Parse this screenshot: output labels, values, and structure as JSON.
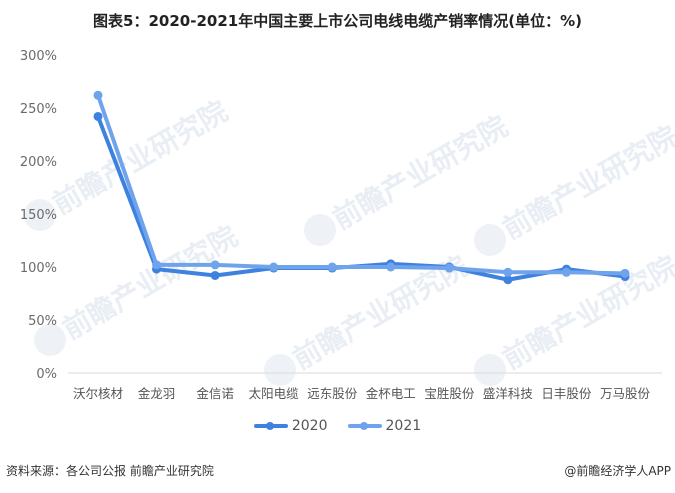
{
  "title": "图表5：2020-2021年中国主要上市公司电线电缆产销率情况(单位：%)",
  "footer": {
    "source": "资料来源：各公司公报 前瞻产业研究院",
    "credit": "@前瞻经济学人APP"
  },
  "watermark": "前瞻产业研究院",
  "colors": {
    "series_2020": "#3e82e0",
    "series_2021": "#6fa3ec",
    "axis": "#d9d9d9"
  },
  "legend": [
    {
      "label": "2020"
    },
    {
      "label": "2021"
    }
  ],
  "y_ticks": [
    "300%",
    "250%",
    "200%",
    "150%",
    "100%",
    "50%",
    "0%"
  ],
  "chart_data": {
    "type": "line",
    "title": "图表5：2020-2021年中国主要上市公司电线电缆产销率情况(单位：%)",
    "xlabel": "",
    "ylabel": "",
    "ylim": [
      0,
      300
    ],
    "y_tick_step": 50,
    "grid": false,
    "legend_position": "bottom",
    "categories": [
      "沃尔核材",
      "金龙羽",
      "金信诺",
      "太阳电缆",
      "远东股份",
      "金杯电工",
      "宝胜股份",
      "盛洋科技",
      "日丰股份",
      "万马股份"
    ],
    "series": [
      {
        "name": "2020",
        "values": [
          242,
          98,
          92,
          99,
          99,
          103,
          100,
          88,
          98,
          91
        ]
      },
      {
        "name": "2021",
        "values": [
          262,
          102,
          102,
          100,
          100,
          100,
          99,
          95,
          95,
          94
        ]
      }
    ]
  }
}
